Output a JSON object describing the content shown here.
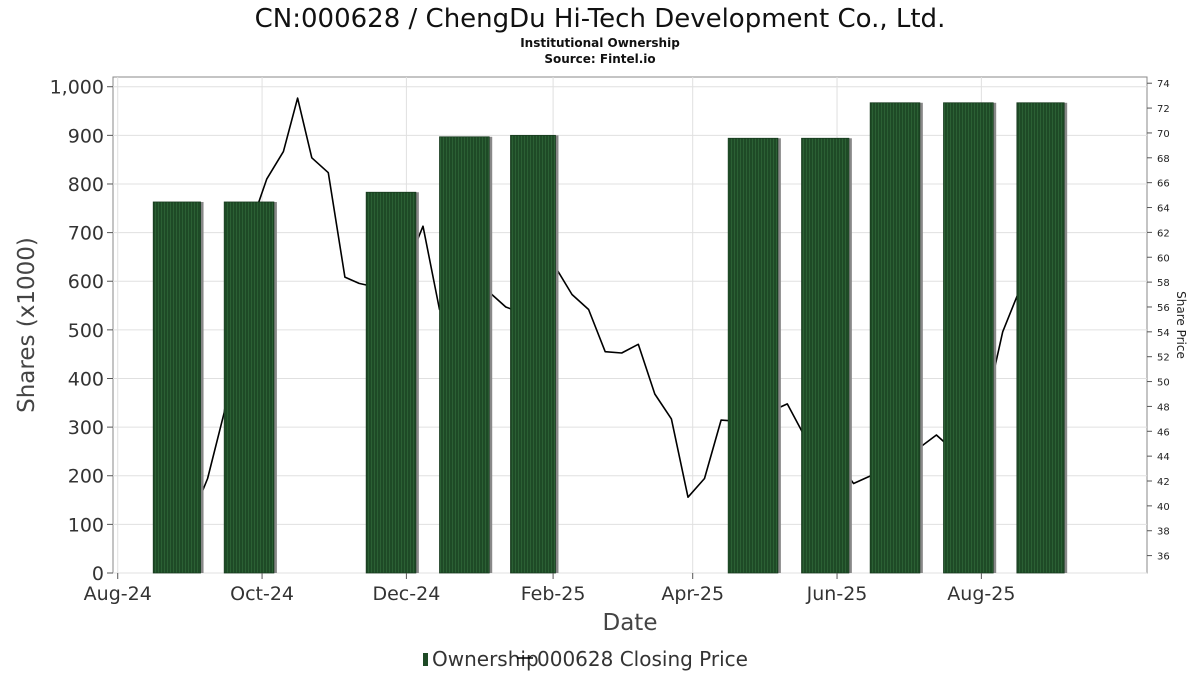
{
  "chart_data": {
    "type": "bar",
    "title": "CN:000628 / ChengDu Hi-Tech Development Co., Ltd.",
    "subtitle_1": "Institutional Ownership",
    "subtitle_2": "Source: Fintel.io",
    "xlabel": "Date",
    "ylabel": "Shares (x1000)",
    "ylabel_right": "Share Price",
    "x_tick_labels": [
      "Aug-24",
      "Oct-24",
      "Dec-24",
      "Feb-25",
      "Apr-25",
      "Jun-25",
      "Aug-25"
    ],
    "x_tick_dates": [
      "2024-08-01",
      "2024-10-01",
      "2024-12-01",
      "2025-02-01",
      "2025-04-01",
      "2025-06-01",
      "2025-08-01"
    ],
    "xlim": [
      "2024-07-30",
      "2025-10-10"
    ],
    "ylim": [
      0,
      1020
    ],
    "yticks": [
      0,
      100,
      200,
      300,
      400,
      500,
      600,
      700,
      800,
      900,
      1000
    ],
    "y_tick_labels": [
      "0",
      "100",
      "200",
      "300",
      "400",
      "500",
      "600",
      "700",
      "800",
      "900",
      "1,000"
    ],
    "ylim_right": [
      34.6,
      74.5
    ],
    "yticks_right": [
      36,
      38,
      40,
      42,
      44,
      46,
      48,
      50,
      52,
      54,
      56,
      58,
      60,
      62,
      64,
      66,
      68,
      70,
      72,
      74
    ],
    "grid": true,
    "legend_position": "bottom",
    "colors": {
      "bar": "#1e4a26",
      "bar_shadow": "#888888",
      "line": "#000000",
      "grid": "#e0e0e0"
    },
    "series": [
      {
        "name": "Ownership",
        "type": "bar",
        "axis": "left",
        "bars": [
          {
            "start": "2024-08-16",
            "end": "2024-09-05",
            "value": 763
          },
          {
            "start": "2024-09-15",
            "end": "2024-10-06",
            "value": 763
          },
          {
            "start": "2024-11-14",
            "end": "2024-12-05",
            "value": 783
          },
          {
            "start": "2024-12-15",
            "end": "2025-01-05",
            "value": 897
          },
          {
            "start": "2025-01-14",
            "end": "2025-02-02",
            "value": 900
          },
          {
            "start": "2025-04-16",
            "end": "2025-05-07",
            "value": 894
          },
          {
            "start": "2025-05-17",
            "end": "2025-06-06",
            "value": 894
          },
          {
            "start": "2025-06-15",
            "end": "2025-07-06",
            "value": 967
          },
          {
            "start": "2025-07-16",
            "end": "2025-08-06",
            "value": 967
          },
          {
            "start": "2025-08-16",
            "end": "2025-09-05",
            "value": 967
          }
        ]
      },
      {
        "name": "000628 Closing Price",
        "type": "line",
        "axis": "right",
        "points": [
          {
            "x": "2024-09-05",
            "y": 40.8
          },
          {
            "x": "2024-09-08",
            "y": 42.2
          },
          {
            "x": "2024-09-15",
            "y": 47.5
          },
          {
            "x": "2024-09-27",
            "y": 63.0
          },
          {
            "x": "2024-10-03",
            "y": 66.3
          },
          {
            "x": "2024-10-10",
            "y": 68.5
          },
          {
            "x": "2024-10-16",
            "y": 72.8
          },
          {
            "x": "2024-10-22",
            "y": 68.0
          },
          {
            "x": "2024-10-29",
            "y": 66.8
          },
          {
            "x": "2024-11-05",
            "y": 58.4
          },
          {
            "x": "2024-11-11",
            "y": 57.9
          },
          {
            "x": "2024-11-18",
            "y": 57.6
          },
          {
            "x": "2024-12-01",
            "y": 59.2
          },
          {
            "x": "2024-12-08",
            "y": 62.5
          },
          {
            "x": "2024-12-15",
            "y": 55.8
          },
          {
            "x": "2024-12-22",
            "y": 57.8
          },
          {
            "x": "2025-01-05",
            "y": 57.2
          },
          {
            "x": "2025-01-12",
            "y": 56.0
          },
          {
            "x": "2025-01-19",
            "y": 55.5
          },
          {
            "x": "2025-01-26",
            "y": 56.6
          },
          {
            "x": "2025-02-02",
            "y": 59.2
          },
          {
            "x": "2025-02-09",
            "y": 57.0
          },
          {
            "x": "2025-02-16",
            "y": 55.8
          },
          {
            "x": "2025-02-23",
            "y": 52.4
          },
          {
            "x": "2025-03-02",
            "y": 52.3
          },
          {
            "x": "2025-03-09",
            "y": 53.0
          },
          {
            "x": "2025-03-16",
            "y": 49.0
          },
          {
            "x": "2025-03-23",
            "y": 47.0
          },
          {
            "x": "2025-03-30",
            "y": 40.7
          },
          {
            "x": "2025-04-06",
            "y": 42.2
          },
          {
            "x": "2025-04-13",
            "y": 46.9
          },
          {
            "x": "2025-04-20",
            "y": 46.8
          },
          {
            "x": "2025-04-27",
            "y": 47.3
          },
          {
            "x": "2025-05-04",
            "y": 47.6
          },
          {
            "x": "2025-05-11",
            "y": 48.2
          },
          {
            "x": "2025-05-18",
            "y": 45.7
          },
          {
            "x": "2025-05-25",
            "y": 44.2
          },
          {
            "x": "2025-06-01",
            "y": 43.6
          },
          {
            "x": "2025-06-08",
            "y": 41.8
          },
          {
            "x": "2025-06-15",
            "y": 42.4
          },
          {
            "x": "2025-06-22",
            "y": 41.7
          },
          {
            "x": "2025-06-29",
            "y": 42.4
          },
          {
            "x": "2025-07-06",
            "y": 44.7
          },
          {
            "x": "2025-07-13",
            "y": 45.7
          },
          {
            "x": "2025-07-20",
            "y": 44.5
          },
          {
            "x": "2025-07-27",
            "y": 45.0
          },
          {
            "x": "2025-08-03",
            "y": 48.0
          },
          {
            "x": "2025-08-10",
            "y": 54.0
          },
          {
            "x": "2025-08-17",
            "y": 57.3
          },
          {
            "x": "2025-08-24",
            "y": 58.8
          },
          {
            "x": "2025-08-29",
            "y": 53.2
          }
        ]
      }
    ]
  }
}
